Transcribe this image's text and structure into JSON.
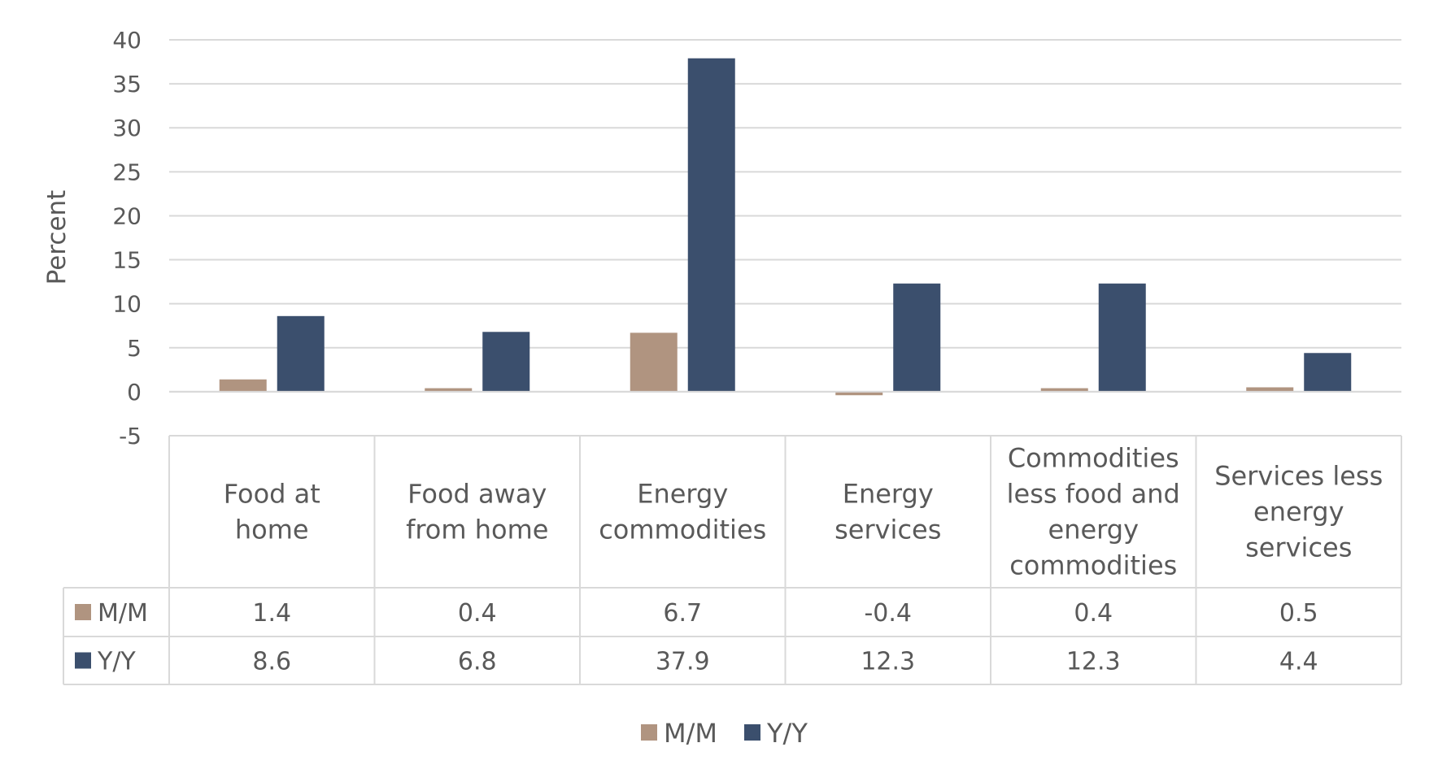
{
  "chart_data": {
    "type": "bar",
    "title": "",
    "xlabel": "",
    "ylabel": "Percent",
    "ylim": [
      -5,
      40
    ],
    "yticks": [
      40,
      35,
      30,
      25,
      20,
      15,
      10,
      5,
      0,
      -5
    ],
    "grid": true,
    "legend_position": "bottom",
    "categories": [
      "Food at home",
      "Food away from home",
      "Energy commodities",
      "Energy services",
      "Commodities less food and energy commodities",
      "Services less energy services"
    ],
    "category_lines": [
      [
        "Food at",
        "home"
      ],
      [
        "Food away",
        "from home"
      ],
      [
        "Energy",
        "commodities"
      ],
      [
        "Energy",
        "services"
      ],
      [
        "Commodities",
        "less food and",
        "energy",
        "commodities"
      ],
      [
        "Services less",
        "energy",
        "services"
      ]
    ],
    "series": [
      {
        "name": "M/M",
        "color": "#b09480",
        "values": [
          1.4,
          0.4,
          6.7,
          -0.4,
          0.4,
          0.5
        ],
        "labels": [
          "1.4",
          "0.4",
          "6.7",
          "-0.4",
          "0.4",
          "0.5"
        ]
      },
      {
        "name": "Y/Y",
        "color": "#3b4f6d",
        "values": [
          8.6,
          6.8,
          37.9,
          12.3,
          12.3,
          4.4
        ],
        "labels": [
          "8.6",
          "6.8",
          "37.9",
          "12.3",
          "12.3",
          "4.4"
        ]
      }
    ]
  },
  "colors": {
    "grid": "#d9d9d9",
    "text": "#595959"
  }
}
